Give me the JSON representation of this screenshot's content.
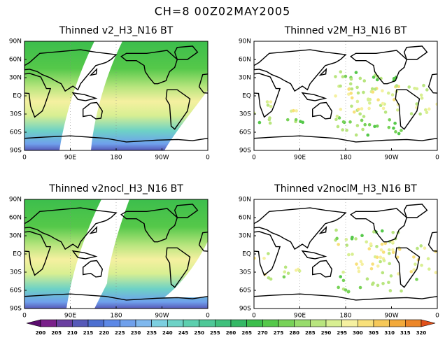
{
  "title": "CH=8   00Z02MAY2005",
  "panels": [
    {
      "title": "Thinned v2_H3_N16 BT"
    },
    {
      "title": "Thinned v2M_H3_N16 BT"
    },
    {
      "title": "Thinned v2nocl_H3_N16 BT"
    },
    {
      "title": "Thinned v2noclM_H3_N16 BT"
    }
  ],
  "lat_labels": [
    "90N",
    "60N",
    "30N",
    "EQ",
    "30S",
    "60S",
    "90S"
  ],
  "lon_labels": [
    "0",
    "90E",
    "180",
    "90W",
    "0"
  ],
  "colorbar": {
    "ticks": [
      200,
      205,
      210,
      215,
      220,
      225,
      230,
      235,
      240,
      245,
      250,
      255,
      260,
      265,
      270,
      275,
      280,
      285,
      290,
      295,
      300,
      305,
      310,
      315,
      320
    ],
    "colors": [
      "#5b0c6e",
      "#7a1f8a",
      "#6a3fa0",
      "#5659b8",
      "#4d6fd0",
      "#5c88e6",
      "#6fa0ec",
      "#7fb8ee",
      "#7ccfe0",
      "#6dd2c6",
      "#5ccfae",
      "#4ec897",
      "#3fc07c",
      "#34b865",
      "#3cbe4c",
      "#55c84a",
      "#78d258",
      "#98dc6c",
      "#b8e57e",
      "#d8ef92",
      "#f5f0a0",
      "#f8e07a",
      "#f6c858",
      "#f2a93a",
      "#ec8628",
      "#e0501a"
    ]
  }
}
